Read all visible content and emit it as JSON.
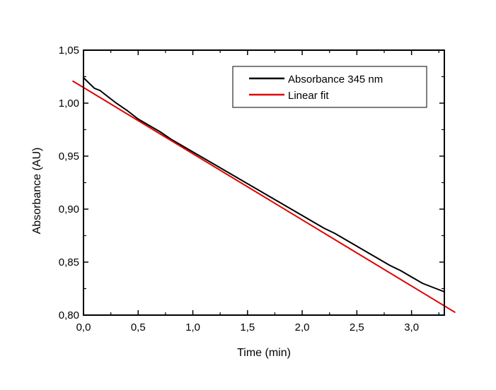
{
  "chart_data": {
    "type": "line",
    "title": "",
    "xlabel": "Time (min)",
    "ylabel": "Absorbance (AU)",
    "xlim": [
      0.0,
      3.3
    ],
    "ylim": [
      0.8,
      1.05
    ],
    "xticks": [
      0.0,
      0.5,
      1.0,
      1.5,
      2.0,
      2.5,
      3.0
    ],
    "xtick_labels": [
      "0,0",
      "0,5",
      "1,0",
      "1,5",
      "2,0",
      "2,5",
      "3,0"
    ],
    "yticks": [
      0.8,
      0.85,
      0.9,
      0.95,
      1.0,
      1.05
    ],
    "ytick_labels": [
      "0,80",
      "0,85",
      "0,90",
      "0,95",
      "1,00",
      "1,05"
    ],
    "grid": false,
    "legend_position": "top-right",
    "series": [
      {
        "name": "Absorbance 345 nm",
        "color": "#000000",
        "x": [
          0.0,
          0.02,
          0.05,
          0.1,
          0.15,
          0.2,
          0.25,
          0.3,
          0.4,
          0.5,
          0.6,
          0.7,
          0.8,
          0.9,
          1.0,
          1.1,
          1.2,
          1.3,
          1.4,
          1.5,
          1.6,
          1.7,
          1.8,
          1.9,
          2.0,
          2.1,
          2.2,
          2.3,
          2.4,
          2.5,
          2.6,
          2.7,
          2.8,
          2.9,
          3.0,
          3.1,
          3.2,
          3.3
        ],
        "y": [
          1.024,
          1.022,
          1.019,
          1.014,
          1.012,
          1.008,
          1.004,
          1.0,
          0.993,
          0.985,
          0.979,
          0.973,
          0.966,
          0.96,
          0.954,
          0.948,
          0.942,
          0.936,
          0.93,
          0.924,
          0.918,
          0.912,
          0.906,
          0.9,
          0.894,
          0.888,
          0.882,
          0.877,
          0.871,
          0.865,
          0.859,
          0.853,
          0.847,
          0.842,
          0.836,
          0.83,
          0.826,
          0.822
        ]
      },
      {
        "name": "Linear fit",
        "color": "#e00000",
        "x": [
          -0.1,
          3.4
        ],
        "y": [
          1.021,
          0.8025
        ]
      }
    ]
  }
}
